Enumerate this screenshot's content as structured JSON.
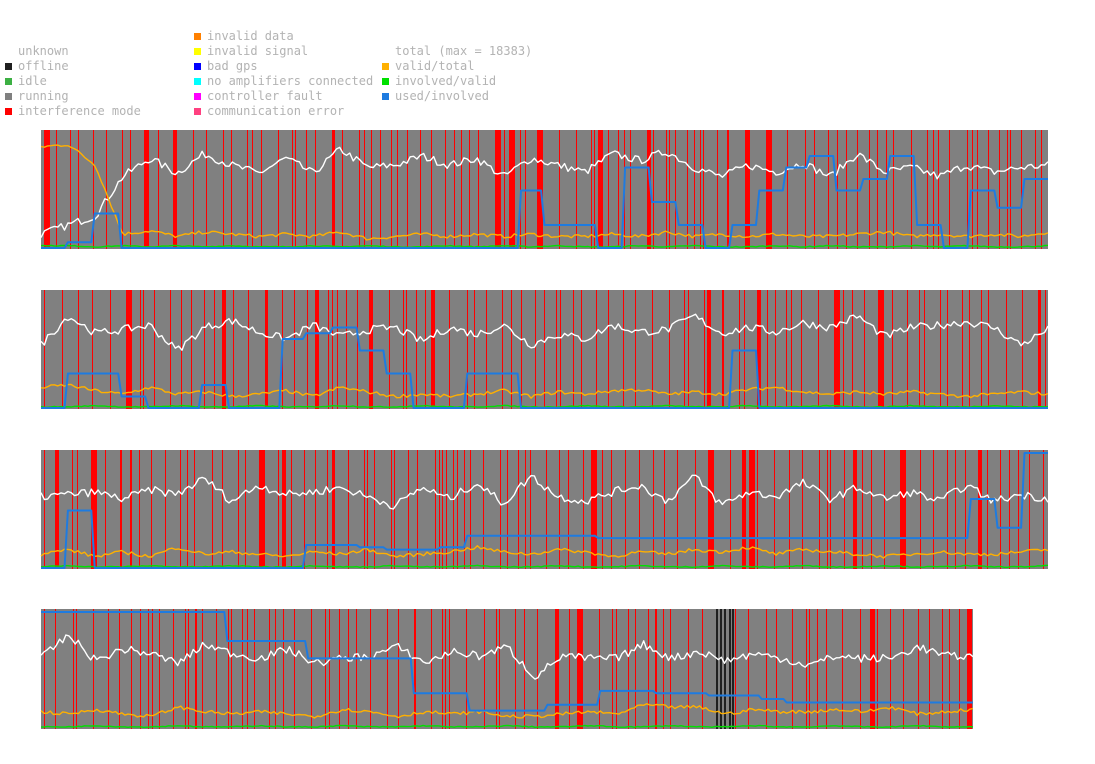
{
  "legend": {
    "col1": [
      {
        "label": "unknown",
        "color": "",
        "icon": "unknown-swatch"
      },
      {
        "label": "offline",
        "color": "#202020",
        "icon": "offline-swatch"
      },
      {
        "label": "idle",
        "color": "#3cb043",
        "icon": "idle-swatch"
      },
      {
        "label": "running",
        "color": "#808080",
        "icon": "running-swatch"
      },
      {
        "label": "interference mode",
        "color": "#ff0000",
        "icon": "interference-swatch"
      }
    ],
    "col2": [
      {
        "label": "invalid data",
        "color": "#ff8000",
        "icon": "invalid-data-swatch"
      },
      {
        "label": "invalid signal",
        "color": "#ffff00",
        "icon": "invalid-signal-swatch"
      },
      {
        "label": "bad gps",
        "color": "#0000ff",
        "icon": "bad-gps-swatch"
      },
      {
        "label": "no amplifiers connected",
        "color": "#00ffff",
        "icon": "no-amplifiers-swatch"
      },
      {
        "label": "controller fault",
        "color": "#ff00ff",
        "icon": "controller-fault-swatch"
      },
      {
        "label": "communication error",
        "color": "#ff4080",
        "icon": "communication-error-swatch"
      }
    ],
    "col3": [
      {
        "label": "total (max = 18383)",
        "color": "",
        "icon": "total-swatch"
      },
      {
        "label": "valid/total",
        "color": "#ffb000",
        "icon": "valid-total-swatch"
      },
      {
        "label": "involved/valid",
        "color": "#00e000",
        "icon": "involved-valid-swatch"
      },
      {
        "label": "used/involved",
        "color": "#1e7be0",
        "icon": "used-involved-swatch"
      }
    ]
  },
  "colors": {
    "running": "#808080",
    "interference": "#ff0000",
    "offline": "#202020",
    "total": "#ffffff",
    "valid_total": "#ffb000",
    "involved_valid": "#00e000",
    "used_involved": "#1e7be0"
  },
  "chart_data": [
    {
      "type": "line",
      "panel": 1,
      "ylim": [
        0,
        1
      ],
      "series": [
        {
          "name": "total (max = 18383)",
          "values": [
            0.12,
            0.2,
            0.28,
            0.62,
            0.78,
            0.65,
            0.82,
            0.72,
            0.65,
            0.78,
            0.65,
            0.86,
            0.7,
            0.72,
            0.8,
            0.72,
            0.78,
            0.62,
            0.78,
            0.72,
            0.66,
            0.82,
            0.76,
            0.84,
            0.7,
            0.62,
            0.72,
            0.66,
            0.74,
            0.62,
            0.82,
            0.66,
            0.7,
            0.62,
            0.72,
            0.66,
            0.7,
            0.72
          ]
        },
        {
          "name": "valid/total",
          "values": [
            0.88,
            0.9,
            0.72,
            0.12,
            0.15,
            0.1,
            0.14,
            0.12,
            0.1,
            0.12,
            0.1,
            0.14,
            0.08,
            0.1,
            0.12,
            0.1,
            0.12,
            0.1,
            0.12,
            0.1,
            0.1,
            0.12,
            0.1,
            0.14,
            0.1,
            0.12,
            0.1,
            0.12,
            0.1,
            0.1,
            0.12,
            0.14,
            0.1,
            0.12,
            0.1,
            0.12,
            0.1,
            0.14
          ]
        },
        {
          "name": "involved/valid",
          "values": [
            0.02,
            0.02,
            0.01,
            0.02,
            0.01,
            0.02,
            0.01,
            0.02,
            0.01,
            0.01,
            0.02,
            0.01,
            0.02,
            0.01,
            0.01,
            0.02,
            0.01,
            0.02,
            0.01,
            0.02,
            0.01,
            0.01,
            0.02,
            0.01,
            0.02,
            0.01,
            0.01,
            0.02,
            0.01,
            0.02,
            0.01,
            0.01,
            0.02,
            0.01,
            0.02,
            0.01,
            0.01,
            0.02
          ]
        },
        {
          "name": "used/involved",
          "values": [
            0.0,
            0.05,
            0.3,
            0.0,
            0.0,
            0.0,
            0.0,
            0.0,
            0.0,
            0.0,
            0.0,
            0.0,
            0.0,
            0.0,
            0.0,
            0.0,
            0.0,
            0.0,
            0.5,
            0.2,
            0.2,
            0.0,
            0.7,
            0.4,
            0.2,
            0.0,
            0.2,
            0.5,
            0.7,
            0.8,
            0.5,
            0.6,
            0.8,
            0.2,
            0.0,
            0.5,
            0.35,
            0.6
          ]
        }
      ]
    },
    {
      "type": "line",
      "panel": 2,
      "ylim": [
        0,
        1
      ],
      "series": [
        {
          "name": "total (max = 18383)",
          "values": [
            0.55,
            0.8,
            0.65,
            0.68,
            0.72,
            0.5,
            0.7,
            0.76,
            0.66,
            0.6,
            0.72,
            0.62,
            0.68,
            0.7,
            0.58,
            0.7,
            0.64,
            0.72,
            0.55,
            0.64,
            0.6,
            0.72,
            0.66,
            0.68,
            0.8,
            0.65,
            0.7,
            0.66,
            0.74,
            0.7,
            0.8,
            0.62,
            0.7,
            0.72,
            0.75,
            0.7,
            0.55,
            0.68
          ]
        },
        {
          "name": "valid/total",
          "values": [
            0.18,
            0.2,
            0.15,
            0.12,
            0.18,
            0.12,
            0.14,
            0.1,
            0.12,
            0.15,
            0.1,
            0.18,
            0.14,
            0.1,
            0.12,
            0.1,
            0.12,
            0.15,
            0.1,
            0.14,
            0.12,
            0.15,
            0.16,
            0.12,
            0.14,
            0.12,
            0.16,
            0.18,
            0.14,
            0.12,
            0.14,
            0.12,
            0.14,
            0.12,
            0.1,
            0.12,
            0.14,
            0.12
          ]
        },
        {
          "name": "involved/valid",
          "values": [
            0.01,
            0.01,
            0.02,
            0.01,
            0.01,
            0.02,
            0.01,
            0.01,
            0.02,
            0.01,
            0.01,
            0.02,
            0.01,
            0.01,
            0.02,
            0.01,
            0.01,
            0.02,
            0.01,
            0.01,
            0.02,
            0.01,
            0.01,
            0.02,
            0.01,
            0.01,
            0.02,
            0.01,
            0.01,
            0.02,
            0.01,
            0.01,
            0.02,
            0.01,
            0.01,
            0.02,
            0.01,
            0.01
          ]
        },
        {
          "name": "used/involved",
          "values": [
            0.0,
            0.3,
            0.3,
            0.1,
            0.0,
            0.0,
            0.2,
            0.0,
            0.0,
            0.6,
            0.65,
            0.7,
            0.5,
            0.3,
            0.0,
            0.0,
            0.3,
            0.3,
            0.0,
            0.0,
            0.0,
            0.0,
            0.0,
            0.0,
            0.0,
            0.0,
            0.5,
            0.0,
            0.0,
            0.0,
            0.0,
            0.0,
            0.0,
            0.0,
            0.0,
            0.0,
            0.0,
            0.0
          ]
        }
      ]
    },
    {
      "type": "line",
      "panel": 3,
      "ylim": [
        0,
        1
      ],
      "series": [
        {
          "name": "total (max = 18383)",
          "values": [
            0.62,
            0.64,
            0.66,
            0.6,
            0.68,
            0.64,
            0.78,
            0.58,
            0.72,
            0.64,
            0.66,
            0.7,
            0.62,
            0.54,
            0.7,
            0.6,
            0.74,
            0.56,
            0.8,
            0.62,
            0.58,
            0.66,
            0.72,
            0.58,
            0.8,
            0.55,
            0.66,
            0.62,
            0.74,
            0.6,
            0.7,
            0.6,
            0.66,
            0.58,
            0.72,
            0.58,
            0.64,
            0.6
          ]
        },
        {
          "name": "valid/total",
          "values": [
            0.12,
            0.16,
            0.1,
            0.14,
            0.1,
            0.18,
            0.12,
            0.14,
            0.12,
            0.1,
            0.14,
            0.12,
            0.16,
            0.1,
            0.12,
            0.14,
            0.18,
            0.14,
            0.12,
            0.16,
            0.14,
            0.1,
            0.14,
            0.12,
            0.16,
            0.14,
            0.18,
            0.12,
            0.16,
            0.14,
            0.12,
            0.1,
            0.12,
            0.14,
            0.12,
            0.12,
            0.14,
            0.16
          ]
        },
        {
          "name": "involved/valid",
          "values": [
            0.01,
            0.02,
            0.01,
            0.01,
            0.02,
            0.01,
            0.01,
            0.02,
            0.01,
            0.01,
            0.02,
            0.01,
            0.01,
            0.02,
            0.01,
            0.01,
            0.02,
            0.01,
            0.01,
            0.02,
            0.01,
            0.01,
            0.02,
            0.01,
            0.01,
            0.02,
            0.01,
            0.01,
            0.02,
            0.01,
            0.01,
            0.02,
            0.01,
            0.01,
            0.02,
            0.01,
            0.01,
            0.02
          ]
        },
        {
          "name": "used/involved",
          "values": [
            0.0,
            0.5,
            0.0,
            0.0,
            0.0,
            0.0,
            0.0,
            0.0,
            0.0,
            0.0,
            0.2,
            0.2,
            0.18,
            0.16,
            0.16,
            0.18,
            0.28,
            0.28,
            0.28,
            0.28,
            0.28,
            0.26,
            0.26,
            0.26,
            0.26,
            0.26,
            0.26,
            0.26,
            0.26,
            0.26,
            0.26,
            0.26,
            0.26,
            0.26,
            0.26,
            0.6,
            0.35,
            1.0
          ]
        }
      ]
    },
    {
      "type": "line",
      "panel": 4,
      "ylim": [
        0,
        1
      ],
      "series": [
        {
          "name": "total (max = 18383)",
          "values": [
            0.6,
            0.8,
            0.58,
            0.68,
            0.64,
            0.56,
            0.72,
            0.64,
            0.6,
            0.68,
            0.56,
            0.6,
            0.62,
            0.7,
            0.56,
            0.66,
            0.62,
            0.7,
            0.44,
            0.62,
            0.6,
            0.6,
            0.72,
            0.6,
            0.66,
            0.58,
            0.64,
            0.6,
            0.54,
            0.62,
            0.6,
            0.6,
            0.7,
            0.62,
            0.62
          ]
        },
        {
          "name": "valid/total",
          "values": [
            0.14,
            0.12,
            0.16,
            0.12,
            0.1,
            0.18,
            0.14,
            0.12,
            0.14,
            0.12,
            0.1,
            0.16,
            0.14,
            0.1,
            0.14,
            0.12,
            0.14,
            0.1,
            0.1,
            0.12,
            0.14,
            0.12,
            0.2,
            0.18,
            0.18,
            0.12,
            0.16,
            0.14,
            0.14,
            0.16,
            0.14,
            0.18,
            0.12,
            0.14,
            0.16
          ]
        },
        {
          "name": "involved/valid",
          "values": [
            0.01,
            0.01,
            0.02,
            0.01,
            0.01,
            0.02,
            0.01,
            0.01,
            0.02,
            0.01,
            0.01,
            0.02,
            0.01,
            0.01,
            0.02,
            0.01,
            0.01,
            0.02,
            0.01,
            0.01,
            0.02,
            0.01,
            0.01,
            0.02,
            0.01,
            0.01,
            0.02,
            0.01,
            0.01,
            0.02,
            0.01,
            0.01,
            0.02,
            0.01,
            0.01
          ]
        },
        {
          "name": "used/involved",
          "values": [
            1.0,
            1.0,
            1.0,
            1.0,
            1.0,
            1.0,
            1.0,
            0.75,
            0.75,
            0.75,
            0.6,
            0.6,
            0.6,
            0.6,
            0.3,
            0.3,
            0.15,
            0.15,
            0.15,
            0.2,
            0.2,
            0.32,
            0.32,
            0.3,
            0.3,
            0.28,
            0.28,
            0.25,
            0.22,
            0.22,
            0.22,
            0.22,
            0.22,
            0.22,
            0.22
          ]
        }
      ]
    }
  ]
}
